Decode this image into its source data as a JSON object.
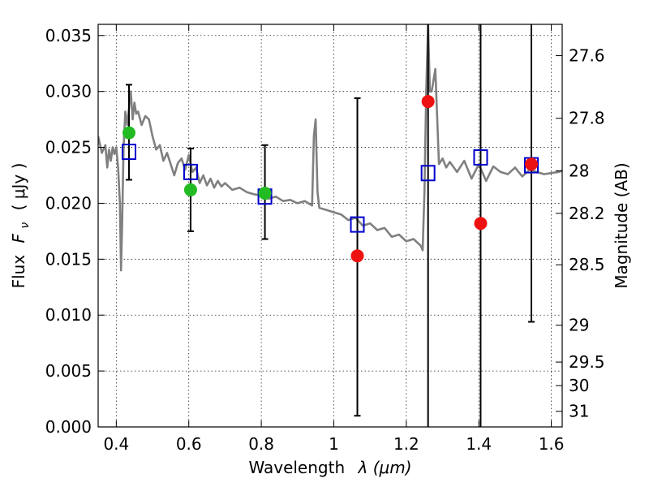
{
  "chart_data": {
    "type": "scatter",
    "xlabel": "Wavelength",
    "xlabel_math": "λ (μm)",
    "ylabel": "Flux",
    "ylabel_math": "F",
    "ylabel_sub": "ν",
    "ylabel_unit": "( μJy )",
    "right_label": "Magnitude (AB)",
    "xlim": [
      0.35,
      1.63
    ],
    "ylim": [
      0.0,
      0.036
    ],
    "grid": true,
    "x_ticks": [
      {
        "v": 0.4,
        "label": "0.4"
      },
      {
        "v": 0.6,
        "label": "0.6"
      },
      {
        "v": 0.8,
        "label": "0.8"
      },
      {
        "v": 1.0,
        "label": "1"
      },
      {
        "v": 1.2,
        "label": "1.2"
      },
      {
        "v": 1.4,
        "label": "1.4"
      },
      {
        "v": 1.6,
        "label": "1.6"
      }
    ],
    "y_ticks": [
      {
        "v": 0.0,
        "label": "0.000"
      },
      {
        "v": 0.005,
        "label": "0.005"
      },
      {
        "v": 0.01,
        "label": "0.010"
      },
      {
        "v": 0.015,
        "label": "0.015"
      },
      {
        "v": 0.02,
        "label": "0.020"
      },
      {
        "v": 0.025,
        "label": "0.025"
      },
      {
        "v": 0.03,
        "label": "0.030"
      },
      {
        "v": 0.035,
        "label": "0.035"
      }
    ],
    "right_ticks": [
      {
        "label": "27.6",
        "flux": 0.0332
      },
      {
        "label": "27.8",
        "flux": 0.0276
      },
      {
        "label": "28",
        "flux": 0.0229
      },
      {
        "label": "28.2",
        "flux": 0.0191
      },
      {
        "label": "28.5",
        "flux": 0.0145
      },
      {
        "label": "29",
        "flux": 0.0091
      },
      {
        "label": "29.5",
        "flux": 0.0058
      },
      {
        "label": "30",
        "flux": 0.0037
      },
      {
        "label": "31",
        "flux": 0.0014
      }
    ],
    "series": [
      {
        "kind": "template",
        "color": "#808080",
        "x": [
          0.35,
          0.36,
          0.37,
          0.375,
          0.38,
          0.385,
          0.39,
          0.395,
          0.4,
          0.405,
          0.41,
          0.413,
          0.416,
          0.42,
          0.425,
          0.43,
          0.435,
          0.44,
          0.445,
          0.45,
          0.455,
          0.46,
          0.47,
          0.48,
          0.49,
          0.5,
          0.51,
          0.52,
          0.53,
          0.54,
          0.55,
          0.56,
          0.57,
          0.58,
          0.59,
          0.6,
          0.61,
          0.62,
          0.63,
          0.64,
          0.65,
          0.66,
          0.67,
          0.68,
          0.69,
          0.7,
          0.72,
          0.74,
          0.76,
          0.78,
          0.8,
          0.82,
          0.84,
          0.86,
          0.88,
          0.9,
          0.92,
          0.94,
          0.945,
          0.95,
          0.955,
          0.96,
          0.98,
          1.0,
          1.02,
          1.04,
          1.06,
          1.08,
          1.1,
          1.12,
          1.14,
          1.16,
          1.18,
          1.2,
          1.22,
          1.24,
          1.245,
          1.25,
          1.255,
          1.26,
          1.265,
          1.27,
          1.28,
          1.29,
          1.3,
          1.31,
          1.32,
          1.34,
          1.36,
          1.38,
          1.4,
          1.42,
          1.44,
          1.46,
          1.48,
          1.5,
          1.52,
          1.54,
          1.56,
          1.58,
          1.6,
          1.62,
          1.63
        ],
        "y": [
          0.026,
          0.0245,
          0.0252,
          0.0232,
          0.0248,
          0.0238,
          0.025,
          0.0244,
          0.025,
          0.0232,
          0.02,
          0.014,
          0.018,
          0.025,
          0.0282,
          0.027,
          0.0285,
          0.03,
          0.0275,
          0.029,
          0.028,
          0.0282,
          0.027,
          0.0278,
          0.0275,
          0.026,
          0.0248,
          0.0252,
          0.0238,
          0.0245,
          0.0235,
          0.0225,
          0.0236,
          0.024,
          0.023,
          0.0243,
          0.0228,
          0.0232,
          0.0218,
          0.0225,
          0.0216,
          0.0222,
          0.0214,
          0.022,
          0.0215,
          0.0218,
          0.0212,
          0.0214,
          0.021,
          0.0208,
          0.0207,
          0.0204,
          0.0206,
          0.0202,
          0.0203,
          0.02,
          0.0202,
          0.0198,
          0.026,
          0.0275,
          0.021,
          0.0196,
          0.0194,
          0.0192,
          0.019,
          0.0185,
          0.0187,
          0.018,
          0.0182,
          0.0176,
          0.0178,
          0.017,
          0.0172,
          0.0166,
          0.0168,
          0.0162,
          0.0158,
          0.021,
          0.03,
          0.036,
          0.03,
          0.03,
          0.032,
          0.0235,
          0.024,
          0.0232,
          0.0237,
          0.0228,
          0.0238,
          0.0222,
          0.0235,
          0.022,
          0.0233,
          0.0228,
          0.0226,
          0.0232,
          0.0224,
          0.023,
          0.0228,
          0.0226,
          0.0227,
          0.0228,
          0.0229
        ]
      },
      {
        "kind": "error_bars",
        "color": "#000000",
        "points": [
          {
            "x": 0.435,
            "y": 0.0263,
            "lo": 0.0221,
            "hi": 0.0306
          },
          {
            "x": 0.605,
            "y": 0.0212,
            "lo": 0.0175,
            "hi": 0.0249
          },
          {
            "x": 0.81,
            "y": 0.0209,
            "lo": 0.0168,
            "hi": 0.0252
          },
          {
            "x": 1.065,
            "y": 0.0153,
            "lo": 0.001,
            "hi": 0.0294
          },
          {
            "x": 1.26,
            "y": 0.0291,
            "lo": 0.0,
            "hi": 0.036
          },
          {
            "x": 1.405,
            "y": 0.0182,
            "lo": 0.0,
            "hi": 0.036
          },
          {
            "x": 1.545,
            "y": 0.0235,
            "lo": 0.0094,
            "hi": 0.036
          }
        ]
      },
      {
        "kind": "model_boxes",
        "color": "#0000cc",
        "x": [
          0.435,
          0.605,
          0.81,
          1.065,
          1.26,
          1.405,
          1.545
        ],
        "y": [
          0.0246,
          0.0228,
          0.0206,
          0.0181,
          0.0227,
          0.0241,
          0.0234
        ]
      },
      {
        "kind": "observed_points",
        "x": [
          0.435,
          0.605,
          0.81,
          1.065,
          1.26,
          1.405,
          1.545
        ],
        "y": [
          0.0263,
          0.0212,
          0.0209,
          0.0153,
          0.0291,
          0.0182,
          0.0235
        ],
        "colors": [
          "#22bb22",
          "#22bb22",
          "#22bb22",
          "#ee1111",
          "#ee1111",
          "#ee1111",
          "#ee1111"
        ]
      }
    ]
  }
}
